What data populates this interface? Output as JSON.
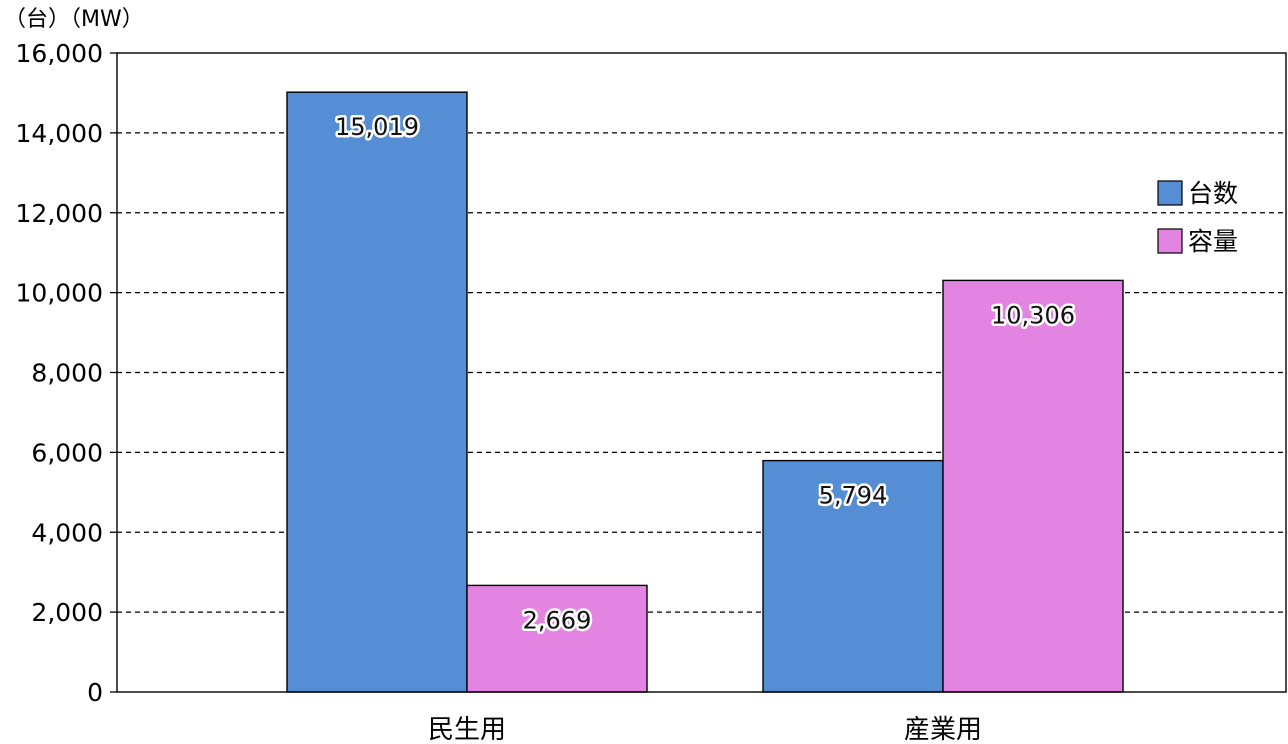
{
  "chart_data": {
    "type": "bar",
    "unit_label": "（台）（MW）",
    "categories": [
      "民生用",
      "産業用"
    ],
    "series": [
      {
        "name": "台数",
        "values": [
          15019,
          5794
        ],
        "labels": [
          "15,019",
          "5,794"
        ],
        "color": "#558ed5"
      },
      {
        "name": "容量",
        "values": [
          2669,
          10306
        ],
        "labels": [
          "2,669",
          "10,306"
        ],
        "color": "#e384e3"
      }
    ],
    "ylim": [
      0,
      16000
    ],
    "y_ticks": [
      0,
      2000,
      4000,
      6000,
      8000,
      10000,
      12000,
      14000,
      16000
    ],
    "y_tick_labels": [
      "0",
      "2,000",
      "4,000",
      "6,000",
      "8,000",
      "10,000",
      "12,000",
      "14,000",
      "16,000"
    ],
    "grid": "horizontal dashed",
    "legend_position": "right"
  }
}
